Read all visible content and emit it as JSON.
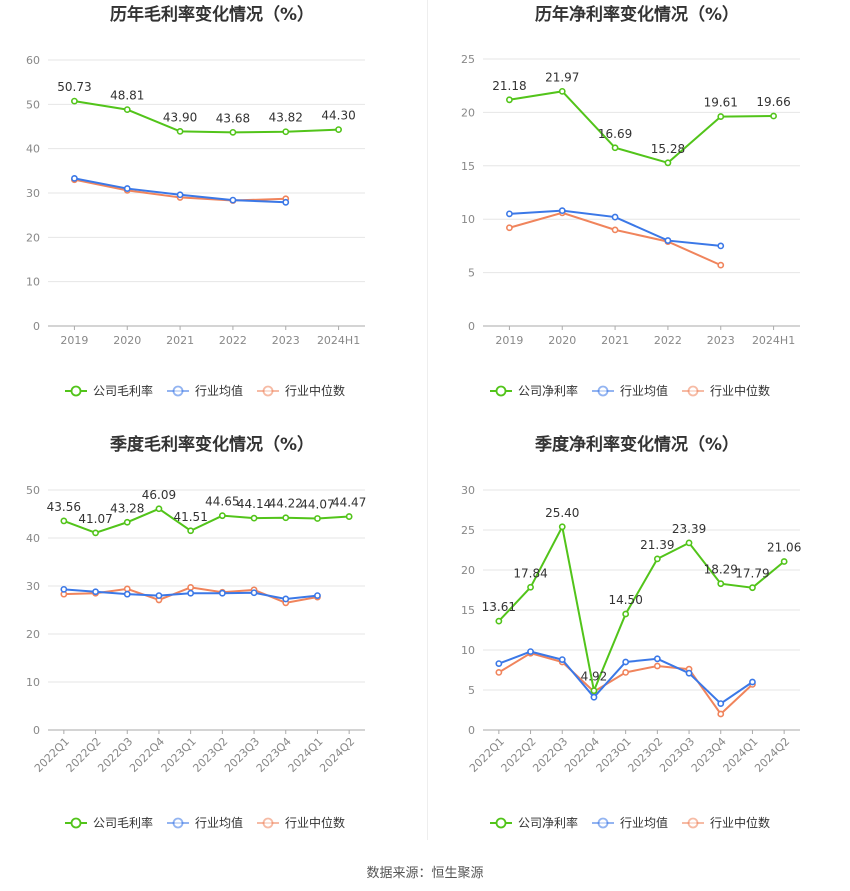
{
  "source_note": "数据来源：恒生聚源",
  "colors": {
    "company": "#52c41a",
    "industry_avg": "#3b78e7",
    "industry_median": "#f0845c"
  },
  "chart_data": [
    {
      "type": "line",
      "title": "历年毛利率变化情况（%）",
      "categories": [
        "2019",
        "2020",
        "2021",
        "2022",
        "2023",
        "2024H1"
      ],
      "ylim": [
        0,
        60
      ],
      "yticks": [
        0,
        10,
        20,
        30,
        40,
        50,
        60
      ],
      "grid": true,
      "legend_position": "bottom",
      "series": [
        {
          "name": "公司毛利率",
          "color": "#52c41a",
          "values": [
            50.73,
            48.81,
            43.9,
            43.68,
            43.82,
            44.3
          ],
          "labels": [
            "50.73",
            "48.81",
            "43.90",
            "43.68",
            "43.82",
            "44.30"
          ]
        },
        {
          "name": "行业均值",
          "color": "#3b78e7",
          "values": [
            33.3,
            31.0,
            29.6,
            28.4,
            27.9,
            null
          ]
        },
        {
          "name": "行业中位数",
          "color": "#f0845c",
          "values": [
            33.0,
            30.6,
            29.0,
            28.3,
            28.7,
            null
          ]
        }
      ]
    },
    {
      "type": "line",
      "title": "历年净利率变化情况（%）",
      "categories": [
        "2019",
        "2020",
        "2021",
        "2022",
        "2023",
        "2024H1"
      ],
      "ylim": [
        0,
        25
      ],
      "yticks": [
        0,
        5,
        10,
        15,
        20,
        25
      ],
      "grid": true,
      "legend_position": "bottom",
      "series": [
        {
          "name": "公司净利率",
          "color": "#52c41a",
          "values": [
            21.18,
            21.97,
            16.69,
            15.28,
            19.61,
            19.66
          ],
          "labels": [
            "21.18",
            "21.97",
            "16.69",
            "15.28",
            "19.61",
            "19.66"
          ]
        },
        {
          "name": "行业均值",
          "color": "#3b78e7",
          "values": [
            10.5,
            10.8,
            10.2,
            8.0,
            7.5,
            null
          ]
        },
        {
          "name": "行业中位数",
          "color": "#f0845c",
          "values": [
            9.2,
            10.6,
            9.0,
            7.9,
            5.7,
            null
          ]
        }
      ]
    },
    {
      "type": "line",
      "title": "季度毛利率变化情况（%）",
      "categories": [
        "2022Q1",
        "2022Q2",
        "2022Q3",
        "2022Q4",
        "2023Q1",
        "2023Q2",
        "2023Q3",
        "2023Q4",
        "2024Q1",
        "2024Q2"
      ],
      "ylim": [
        0,
        50
      ],
      "yticks": [
        0,
        10,
        20,
        30,
        40,
        50
      ],
      "grid": true,
      "legend_position": "bottom",
      "series": [
        {
          "name": "公司毛利率",
          "color": "#52c41a",
          "values": [
            43.56,
            41.07,
            43.28,
            46.09,
            41.51,
            44.65,
            44.14,
            44.22,
            44.07,
            44.47
          ],
          "labels": [
            "43.56",
            "41.07",
            "43.28",
            "46.09",
            "41.51",
            "44.65",
            "44.14",
            "44.22",
            "44.07",
            "44.47"
          ]
        },
        {
          "name": "行业均值",
          "color": "#3b78e7",
          "values": [
            29.3,
            28.8,
            28.3,
            28.0,
            28.5,
            28.5,
            28.6,
            27.3,
            28.0,
            null
          ]
        },
        {
          "name": "行业中位数",
          "color": "#f0845c",
          "values": [
            28.3,
            28.5,
            29.4,
            27.1,
            29.7,
            28.7,
            29.2,
            26.5,
            27.7,
            null
          ]
        }
      ]
    },
    {
      "type": "line",
      "title": "季度净利率变化情况（%）",
      "categories": [
        "2022Q1",
        "2022Q2",
        "2022Q3",
        "2022Q4",
        "2023Q1",
        "2023Q2",
        "2023Q3",
        "2023Q4",
        "2024Q1",
        "2024Q2"
      ],
      "ylim": [
        0,
        30
      ],
      "yticks": [
        0,
        5,
        10,
        15,
        20,
        25,
        30
      ],
      "grid": true,
      "legend_position": "bottom",
      "series": [
        {
          "name": "公司净利率",
          "color": "#52c41a",
          "values": [
            13.61,
            17.84,
            25.4,
            4.92,
            14.5,
            21.39,
            23.39,
            18.29,
            17.79,
            21.06
          ],
          "labels": [
            "13.61",
            "17.84",
            "25.40",
            "4.92",
            "14.50",
            "21.39",
            "23.39",
            "18.29",
            "17.79",
            "21.06"
          ]
        },
        {
          "name": "行业均值",
          "color": "#3b78e7",
          "values": [
            8.3,
            9.8,
            8.8,
            4.1,
            8.5,
            8.9,
            7.1,
            3.3,
            6.0,
            null
          ]
        },
        {
          "name": "行业中位数",
          "color": "#f0845c",
          "values": [
            7.2,
            9.6,
            8.5,
            4.8,
            7.2,
            8.0,
            7.6,
            2.0,
            5.7,
            null
          ]
        }
      ]
    }
  ]
}
